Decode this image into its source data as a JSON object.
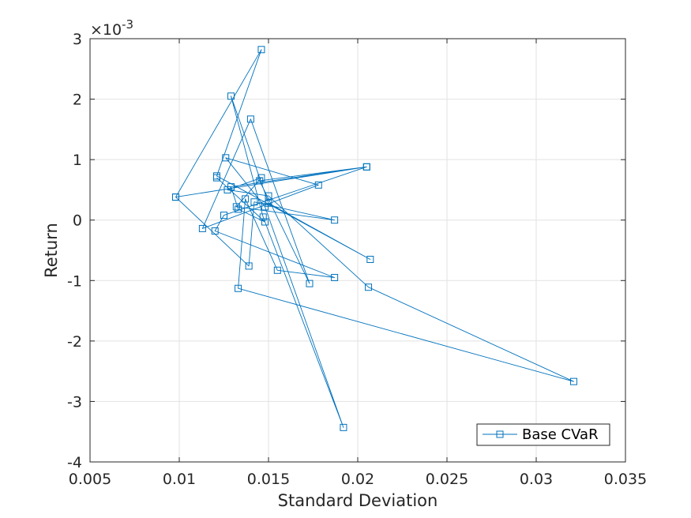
{
  "chart_data": {
    "type": "line",
    "title": "",
    "xlabel": "Standard Deviation",
    "ylabel": "Return",
    "xlim": [
      0.005,
      0.035
    ],
    "ylim": [
      -0.004,
      0.003
    ],
    "grid": true,
    "legend_placement": "bottom-right",
    "y_exponent_label": "×10",
    "y_exponent": "-3",
    "x_ticks": [
      0.005,
      0.01,
      0.015,
      0.02,
      0.025,
      0.03,
      0.035
    ],
    "x_tick_labels": [
      "0.005",
      "0.01",
      "0.015",
      "0.02",
      "0.025",
      "0.03",
      "0.035"
    ],
    "y_ticks": [
      -0.004,
      -0.003,
      -0.002,
      -0.001,
      0,
      0.001,
      0.002,
      0.003
    ],
    "y_tick_labels": [
      "-4",
      "-3",
      "-2",
      "-1",
      "0",
      "1",
      "2",
      "3"
    ],
    "line_color": "#0072BD",
    "marker": "square",
    "series": [
      {
        "name": "Base CVaR",
        "x": [
          0.0098,
          0.0146,
          0.0121,
          0.0207,
          0.015,
          0.0129,
          0.0147,
          0.0192,
          0.0148,
          0.0126,
          0.0178,
          0.0113,
          0.014,
          0.0173,
          0.0145,
          0.0205,
          0.0125,
          0.012,
          0.0187,
          0.0155,
          0.0137,
          0.0133,
          0.0321,
          0.0206,
          0.015,
          0.0127,
          0.0146,
          0.0132,
          0.0187,
          0.0142,
          0.0139,
          0.0098,
          0.0205,
          0.0129,
          0.0133,
          0.0148,
          0.0121
        ],
        "y": [
          0.00038,
          0.00282,
          0.00073,
          -0.00065,
          0.00028,
          0.00205,
          5e-05,
          -0.00343,
          0.00022,
          0.00103,
          0.00058,
          -0.00014,
          0.00167,
          -0.00105,
          0.00065,
          0.00088,
          8e-05,
          -0.00018,
          -0.00095,
          -0.00083,
          0.00035,
          -0.00113,
          -0.00267,
          -0.00111,
          0.0004,
          0.0005,
          0.0007,
          0.00022,
          0.0,
          0.0003,
          -0.00076,
          0.00038,
          0.00088,
          0.00055,
          0.00018,
          -3e-05,
          0.0007
        ]
      }
    ]
  }
}
